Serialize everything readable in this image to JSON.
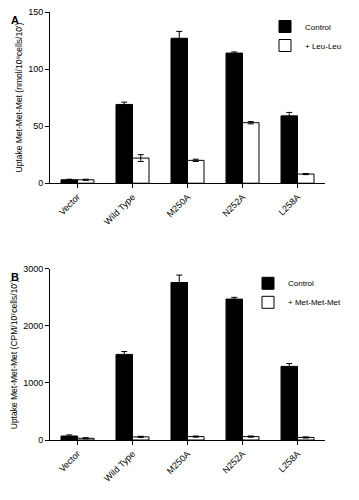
{
  "chart_data": [
    {
      "type": "bar",
      "title": "A",
      "categories": [
        "Vector",
        "Wild Type",
        "M250A",
        "N252A",
        "L258A"
      ],
      "y_label": "Uptake Met-Met-Met (nmol/10⁹cells/10')",
      "ylim": [
        0,
        150
      ],
      "yticks": [
        0,
        50,
        100,
        150
      ],
      "grid": false,
      "legend": "top-right",
      "series": [
        {
          "name": "Control",
          "color": "#000000",
          "values": [
            3,
            69,
            127,
            114,
            59
          ],
          "errors": [
            0.5,
            2,
            6,
            1,
            3
          ]
        },
        {
          "name": "+ Leu-Leu",
          "color": "#ffffff",
          "values": [
            3,
            22,
            20,
            53,
            8
          ],
          "errors": [
            0.5,
            3,
            1,
            1,
            0.5
          ]
        }
      ]
    },
    {
      "type": "bar",
      "title": "B",
      "categories": [
        "Vector",
        "Wild Type",
        "M250A",
        "N252A",
        "L258A"
      ],
      "y_label": "Uptake Met-Met-Met (CPM/10⁷cells/10')",
      "ylim": [
        0,
        3000
      ],
      "yticks": [
        0,
        1000,
        2000,
        3000
      ],
      "grid": false,
      "legend": "top-right",
      "series": [
        {
          "name": "Control",
          "color": "#000000",
          "values": [
            70,
            1500,
            2760,
            2470,
            1290
          ],
          "errors": [
            20,
            50,
            130,
            30,
            50
          ]
        },
        {
          "name": "+ Met-Met-Met",
          "color": "#ffffff",
          "values": [
            30,
            55,
            60,
            60,
            45
          ],
          "errors": [
            10,
            10,
            10,
            10,
            10
          ]
        }
      ]
    }
  ]
}
